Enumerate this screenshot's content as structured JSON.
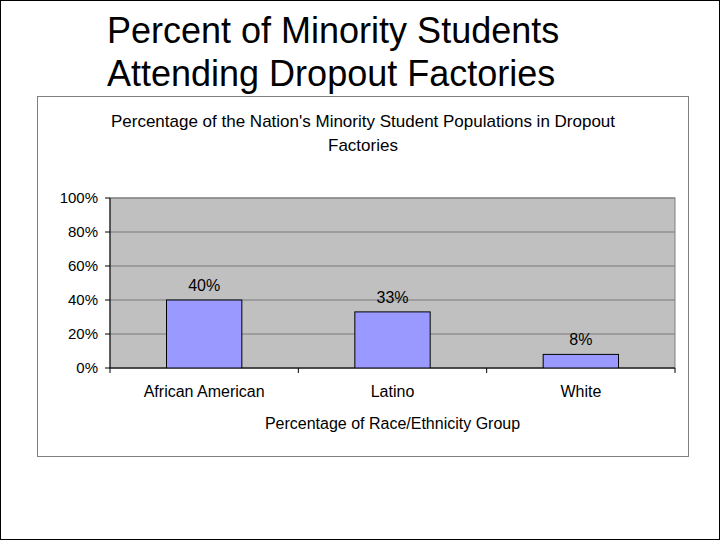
{
  "slide": {
    "title": "Percent of Minority Students Attending Dropout Factories"
  },
  "chart_data": {
    "type": "bar",
    "title": "Percentage of the Nation's Minority Student Populations in Dropout Factories",
    "x_label": "Percentage of Race/Ethnicity Group",
    "categories": [
      "African American",
      "Latino",
      "White"
    ],
    "values": [
      40,
      33,
      8
    ],
    "value_labels": [
      "40%",
      "33%",
      "8%"
    ],
    "color": "#9999ff",
    "ylim": [
      0,
      100
    ],
    "yticks": [
      {
        "value": 0,
        "label": "0%"
      },
      {
        "value": 20,
        "label": "20%"
      },
      {
        "value": 40,
        "label": "40%"
      },
      {
        "value": 60,
        "label": "60%"
      },
      {
        "value": 80,
        "label": "80%"
      },
      {
        "value": 100,
        "label": "100%"
      }
    ],
    "grid": true,
    "data_labels": true
  }
}
